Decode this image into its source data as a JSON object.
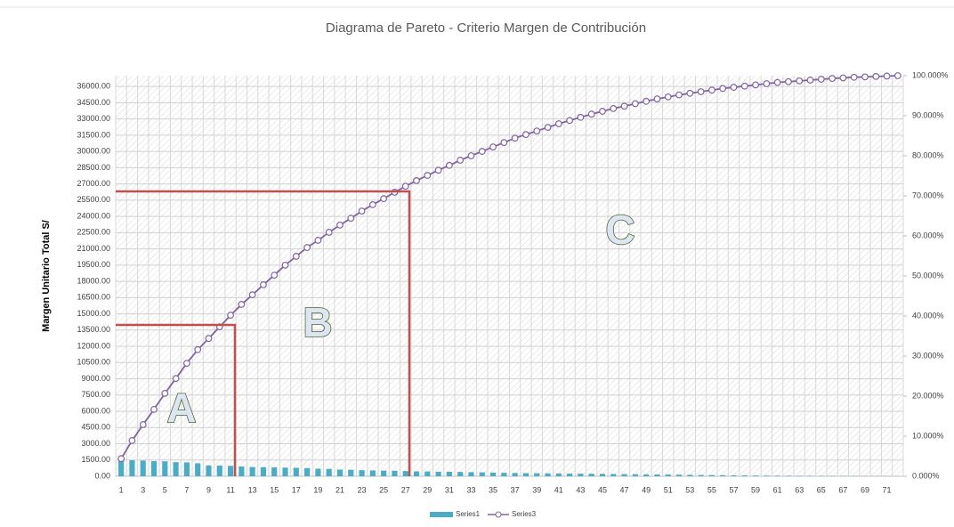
{
  "chart_data": {
    "type": "pareto",
    "title": "Diagrama de Pareto - Criterio Margen de Contribución",
    "y_label": "Margen Unitario Total S/",
    "annotations": [
      "A",
      "B",
      "C"
    ],
    "categories": [
      "1",
      null,
      "3",
      null,
      "5",
      null,
      "7",
      null,
      "9",
      null,
      "11",
      null,
      "13",
      null,
      "15",
      null,
      "17",
      null,
      "19",
      null,
      "21",
      null,
      "23",
      null,
      "25",
      null,
      "27",
      null,
      "29",
      null,
      "31",
      null,
      "33",
      null,
      "35",
      null,
      "37",
      null,
      "39",
      null,
      "41",
      null,
      "43",
      null,
      "45",
      null,
      "47",
      null,
      "49",
      null,
      "51",
      null,
      "53",
      null,
      "55",
      null,
      "57",
      null,
      "59",
      null,
      "61",
      null,
      "63",
      null,
      "65",
      null,
      "67",
      null,
      "69",
      null,
      "71",
      null
    ],
    "series": [
      {
        "name": "Series1",
        "color": "#4bacc6",
        "values": [
          1500,
          1480,
          1450,
          1400,
          1380,
          1300,
          1280,
          1200,
          1000,
          980,
          960,
          900,
          850,
          840,
          820,
          800,
          780,
          750,
          700,
          680,
          620,
          600,
          560,
          540,
          520,
          510,
          480,
          450,
          440,
          420,
          410,
          400,
          380,
          360,
          340,
          320,
          300,
          290,
          280,
          270,
          260,
          250,
          240,
          230,
          220,
          210,
          200,
          190,
          180,
          170,
          160,
          150,
          130,
          120,
          110,
          100,
          90,
          80,
          70,
          60,
          55,
          50,
          45,
          40,
          35,
          30,
          25,
          20,
          15,
          12,
          10,
          8
        ]
      },
      {
        "name": "Series3",
        "color": "#8064a2",
        "axis": "y2",
        "values": [
          4.4,
          8.9,
          12.9,
          16.7,
          20.7,
          24.4,
          28.2,
          31.6,
          34.4,
          37.3,
          40.2,
          42.9,
          45.3,
          47.8,
          50.2,
          52.7,
          54.9,
          57.1,
          58.9,
          60.9,
          62.7,
          64.4,
          66.2,
          67.8,
          69.3,
          70.9,
          72.4,
          73.8,
          75.1,
          76.4,
          77.6,
          78.9,
          80.0,
          81.1,
          82.2,
          83.3,
          84.4,
          85.3,
          86.2,
          87.1,
          88.0,
          88.8,
          89.6,
          90.4,
          91.1,
          91.8,
          92.4,
          93.0,
          93.6,
          94.2,
          94.7,
          95.2,
          95.6,
          96.0,
          96.4,
          96.8,
          97.1,
          97.4,
          97.7,
          98.0,
          98.3,
          98.5,
          98.7,
          98.9,
          99.1,
          99.3,
          99.45,
          99.6,
          99.7,
          99.8,
          99.9,
          100
        ]
      }
    ],
    "ylim": [
      0,
      37000
    ],
    "yticks": [
      {
        "value": 0,
        "label": "0.00"
      },
      {
        "value": 1500,
        "label": "1500.00"
      },
      {
        "value": 3000,
        "label": "3000.00"
      },
      {
        "value": 4500,
        "label": "4500.00"
      },
      {
        "value": 6000,
        "label": "6000.00"
      },
      {
        "value": 7500,
        "label": "7500.00"
      },
      {
        "value": 9000,
        "label": "9000.00"
      },
      {
        "value": 10500,
        "label": "10500.00"
      },
      {
        "value": 12000,
        "label": "12000.00"
      },
      {
        "value": 13500,
        "label": "13500.00"
      },
      {
        "value": 15000,
        "label": "15000.00"
      },
      {
        "value": 16500,
        "label": "16500.00"
      },
      {
        "value": 18000,
        "label": "18000.00"
      },
      {
        "value": 19500,
        "label": "19500.00"
      },
      {
        "value": 21000,
        "label": "21000.00"
      },
      {
        "value": 22500,
        "label": "22500.00"
      },
      {
        "value": 24000,
        "label": "24000.00"
      },
      {
        "value": 25500,
        "label": "25500.00"
      },
      {
        "value": 27000,
        "label": "27000.00"
      },
      {
        "value": 28500,
        "label": "28500.00"
      },
      {
        "value": 30000,
        "label": "30000.00"
      },
      {
        "value": 31500,
        "label": "31500.00"
      },
      {
        "value": 33000,
        "label": "33000.00"
      },
      {
        "value": 34500,
        "label": "34500.00"
      },
      {
        "value": 36000,
        "label": "36000.00"
      }
    ],
    "y2lim": [
      0,
      100
    ],
    "y2ticks": [
      {
        "value": 0,
        "label": "0.000%"
      },
      {
        "value": 10,
        "label": "10.000%"
      },
      {
        "value": 20,
        "label": "20.000%"
      },
      {
        "value": 30,
        "label": "30.000%"
      },
      {
        "value": 40,
        "label": "40.000%"
      },
      {
        "value": 50,
        "label": "50.000%"
      },
      {
        "value": 60,
        "label": "60.000%"
      },
      {
        "value": 70,
        "label": "70.000%"
      },
      {
        "value": 80,
        "label": "80.000%"
      },
      {
        "value": 90,
        "label": "90.000%"
      },
      {
        "value": 100,
        "label": "100.000%"
      }
    ],
    "grid": true,
    "legend": "bottom"
  }
}
